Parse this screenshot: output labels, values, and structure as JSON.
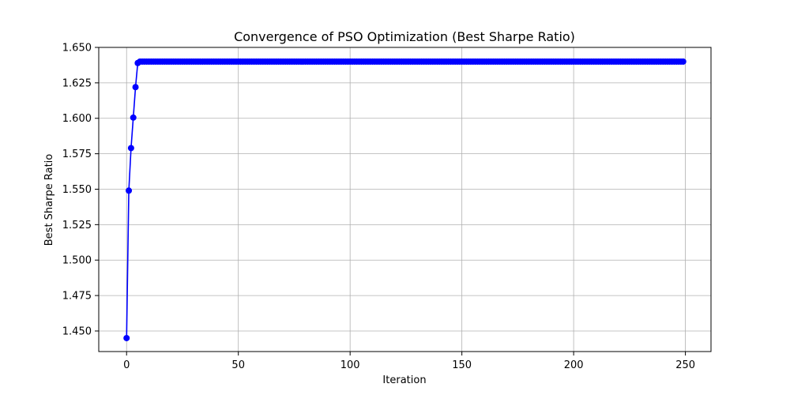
{
  "chart_data": {
    "type": "line",
    "title": "Convergence of PSO Optimization (Best Sharpe Ratio)",
    "xlabel": "Iteration",
    "ylabel": "Best Sharpe Ratio",
    "xlim": [
      -12.45,
      261.45
    ],
    "ylim": [
      1.4355,
      1.65
    ],
    "xticks": [
      0,
      50,
      100,
      150,
      200,
      250
    ],
    "xtick_labels": [
      "0",
      "50",
      "100",
      "150",
      "200",
      "250"
    ],
    "yticks": [
      1.45,
      1.475,
      1.5,
      1.525,
      1.55,
      1.575,
      1.6,
      1.625,
      1.65
    ],
    "ytick_labels": [
      "1.450",
      "1.475",
      "1.500",
      "1.525",
      "1.550",
      "1.575",
      "1.600",
      "1.625",
      "1.650"
    ],
    "grid": true,
    "legend": false,
    "series": [
      {
        "color": "#0000ff",
        "marker": "circle",
        "x_start": 0,
        "x_end": 249,
        "initial_values": [
          1.445,
          1.549,
          1.579,
          1.6005,
          1.622,
          1.639
        ],
        "plateau_value": 1.64
      }
    ]
  }
}
